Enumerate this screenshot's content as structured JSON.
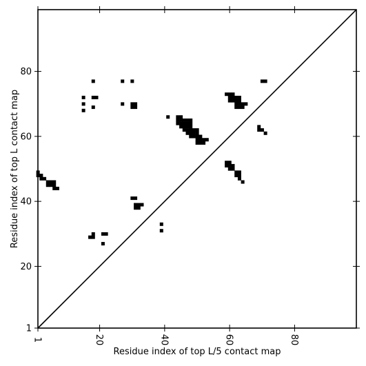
{
  "chart_data": {
    "type": "heatmap",
    "xlabel": "Residue index of top L/5 contact map",
    "ylabel": "Residue index of top L contact map",
    "xlim": [
      1,
      99
    ],
    "ylim": [
      1,
      99
    ],
    "xticks": [
      1,
      20,
      40,
      60,
      80
    ],
    "yticks": [
      1,
      20,
      40,
      60,
      80
    ],
    "diagonal": true,
    "grid": false,
    "cell_color": "#000000",
    "line_color": "#000000",
    "upper_left_contacts": [
      [
        18,
        77
      ],
      [
        27,
        77
      ],
      [
        30,
        77
      ],
      [
        15,
        72
      ],
      [
        18,
        72
      ],
      [
        19,
        72
      ],
      [
        15,
        70
      ],
      [
        27,
        70
      ],
      [
        30,
        70
      ],
      [
        31,
        70
      ],
      [
        18,
        69
      ],
      [
        30,
        69
      ],
      [
        31,
        69
      ],
      [
        15,
        68
      ],
      [
        41,
        66
      ],
      [
        44,
        66
      ],
      [
        45,
        66
      ],
      [
        44,
        65
      ],
      [
        45,
        65
      ],
      [
        46,
        65
      ],
      [
        47,
        65
      ],
      [
        48,
        65
      ],
      [
        44,
        64
      ],
      [
        45,
        64
      ],
      [
        46,
        64
      ],
      [
        47,
        64
      ],
      [
        48,
        64
      ],
      [
        45,
        63
      ],
      [
        46,
        63
      ],
      [
        47,
        63
      ],
      [
        48,
        63
      ],
      [
        46,
        62
      ],
      [
        47,
        62
      ],
      [
        48,
        62
      ],
      [
        49,
        62
      ],
      [
        50,
        62
      ],
      [
        47,
        61
      ],
      [
        48,
        61
      ],
      [
        49,
        61
      ],
      [
        50,
        61
      ],
      [
        48,
        60
      ],
      [
        49,
        60
      ],
      [
        50,
        60
      ],
      [
        51,
        60
      ],
      [
        50,
        59
      ],
      [
        51,
        59
      ],
      [
        52,
        59
      ],
      [
        53,
        59
      ],
      [
        50,
        58
      ],
      [
        51,
        58
      ],
      [
        52,
        58
      ],
      [
        59,
        73
      ],
      [
        60,
        73
      ],
      [
        61,
        73
      ],
      [
        60,
        72
      ],
      [
        61,
        72
      ],
      [
        62,
        72
      ],
      [
        63,
        72
      ],
      [
        60,
        71
      ],
      [
        61,
        71
      ],
      [
        62,
        71
      ],
      [
        63,
        71
      ],
      [
        62,
        70
      ],
      [
        63,
        70
      ],
      [
        64,
        70
      ],
      [
        65,
        70
      ],
      [
        62,
        69
      ],
      [
        63,
        69
      ],
      [
        64,
        69
      ],
      [
        70,
        77
      ],
      [
        71,
        77
      ],
      [
        69,
        63
      ],
      [
        69,
        62
      ],
      [
        70,
        62
      ],
      [
        71,
        61
      ]
    ],
    "lower_right_contacts": [
      [
        1,
        49
      ],
      [
        1,
        48
      ],
      [
        2,
        48
      ],
      [
        2,
        47
      ],
      [
        3,
        47
      ],
      [
        4,
        46
      ],
      [
        5,
        46
      ],
      [
        6,
        46
      ],
      [
        4,
        45
      ],
      [
        5,
        45
      ],
      [
        6,
        45
      ],
      [
        6,
        44
      ],
      [
        7,
        44
      ],
      [
        59,
        52
      ],
      [
        60,
        52
      ],
      [
        59,
        51
      ],
      [
        60,
        51
      ],
      [
        61,
        51
      ],
      [
        60,
        50
      ],
      [
        61,
        50
      ],
      [
        62,
        49
      ],
      [
        63,
        49
      ],
      [
        62,
        48
      ],
      [
        63,
        48
      ],
      [
        63,
        47
      ],
      [
        64,
        46
      ],
      [
        30,
        41
      ],
      [
        31,
        41
      ],
      [
        31,
        39
      ],
      [
        32,
        39
      ],
      [
        33,
        39
      ],
      [
        31,
        38
      ],
      [
        32,
        38
      ],
      [
        39,
        33
      ],
      [
        39,
        31
      ],
      [
        21,
        30
      ],
      [
        22,
        30
      ],
      [
        18,
        30
      ],
      [
        17,
        29
      ],
      [
        18,
        29
      ],
      [
        21,
        27
      ]
    ]
  }
}
